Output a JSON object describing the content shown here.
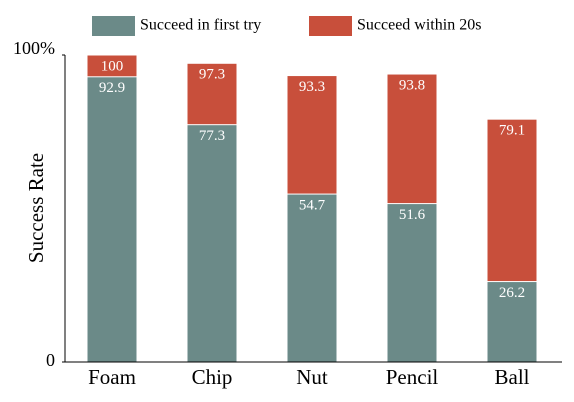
{
  "chart_data": {
    "type": "bar",
    "barmode": "overlay",
    "categories": [
      "Foam",
      "Chip",
      "Nut",
      "Pencil",
      "Ball"
    ],
    "series": [
      {
        "name": "Succeed within 20s",
        "color": "#c84f3b",
        "values": [
          100,
          97.3,
          93.3,
          93.8,
          79.1
        ]
      },
      {
        "name": "Succeed in first try",
        "color": "#6b8a88",
        "values": [
          92.9,
          77.3,
          54.7,
          51.6,
          26.2
        ]
      }
    ],
    "ylabel": "Success Rate",
    "ylim": [
      0,
      100
    ],
    "yticks": [
      0,
      {
        "value": 100,
        "label": "100%"
      }
    ],
    "legend_order": [
      1,
      0
    ],
    "grid": false
  }
}
